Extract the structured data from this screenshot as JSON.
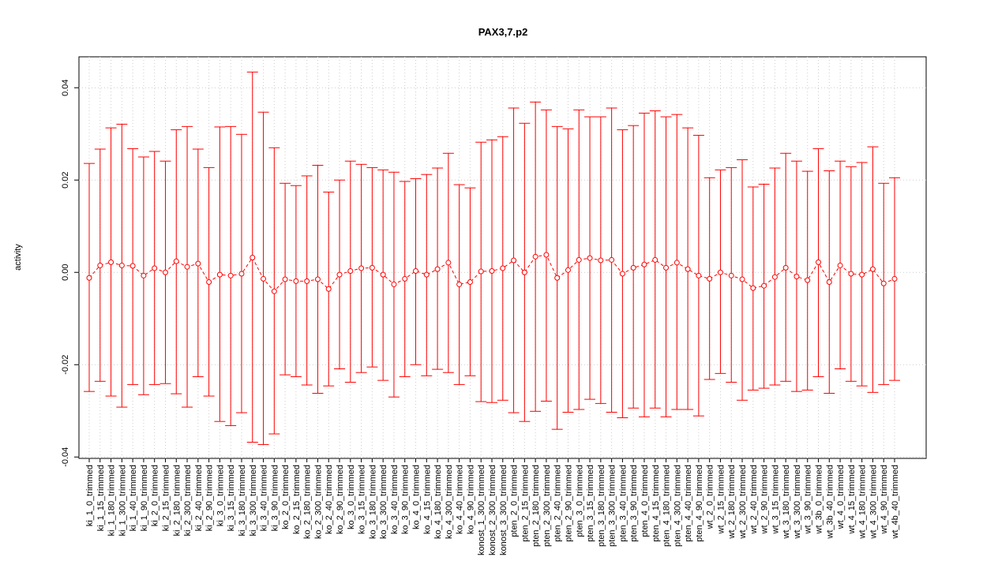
{
  "chart_data": {
    "type": "errorbar",
    "title": "PAX3,7.p2",
    "ylabel": "activity",
    "color": "#ff0000",
    "grid": true,
    "categories": [
      "ki_1_0_trimmed",
      "ki_1_15_trimmed",
      "ki_1_180_trimmed",
      "ki_1_300_trimmed",
      "ki_1_40_trimmed",
      "ki_1_90_trimmed",
      "ki_2_0_trimmed",
      "ki_2_15_trimmed",
      "ki_2_180_trimmed",
      "ki_2_300_trimmed",
      "ki_2_40_trimmed",
      "ki_2_90_trimmed",
      "ki_3_0_trimmed",
      "ki_3_15_trimmed",
      "ki_3_180_trimmed",
      "ki_3_300_trimmed",
      "ki_3_40_trimmed",
      "ki_3_90_trimmed",
      "ko_2_0_trimmed",
      "ko_2_15_trimmed",
      "ko_2_180_trimmed",
      "ko_2_300_trimmed",
      "ko_2_40_trimmed",
      "ko_2_90_trimmed",
      "ko_3_0_trimmed",
      "ko_3_15_trimmed",
      "ko_3_180_trimmed",
      "ko_3_300_trimmed",
      "ko_3_40_trimmed",
      "ko_3_90_trimmed",
      "ko_4_0_trimmed",
      "ko_4_15_trimmed",
      "ko_4_180_trimmed",
      "ko_4_300_trimmed",
      "ko_4_40_trimmed",
      "ko_4_90_trimmed",
      "konost_1_300_trimmed",
      "konost_2_300_trimmed",
      "konost_3_300_trimmed",
      "pten_2_0_trimmed",
      "pten_2_15_trimmed",
      "pten_2_180_trimmed",
      "pten_2_300_trimmed",
      "pten_2_40_trimmed",
      "pten_2_90_trimmed",
      "pten_3_0_trimmed",
      "pten_3_15_trimmed",
      "pten_3_180_trimmed",
      "pten_3_300_trimmed",
      "pten_3_40_trimmed",
      "pten_3_90_trimmed",
      "pten_4_0_trimmed",
      "pten_4_15_trimmed",
      "pten_4_180_trimmed",
      "pten_4_300_trimmed",
      "pten_4_40_trimmed",
      "pten_4_90_trimmed",
      "wt_2_0_trimmed",
      "wt_2_15_trimmed",
      "wt_2_180_trimmed",
      "wt_2_300_trimmed",
      "wt_2_40_trimmed",
      "wt_2_90_trimmed",
      "wt_3_15_trimmed",
      "wt_3_180_trimmed",
      "wt_3_300_trimmed",
      "wt_3_90_trimmed",
      "wt_3b_0_trimmed",
      "wt_3b_40_trimmed",
      "wt_4_0_trimmed",
      "wt_4_15_trimmed",
      "wt_4_180_trimmed",
      "wt_4_300_trimmed",
      "wt_4_90_trimmed",
      "wt_4b_40_trimmed"
    ],
    "values": [
      -0.0012,
      0.0015,
      0.0022,
      0.0015,
      0.0014,
      -0.0007,
      0.0009,
      0,
      0.0024,
      0.0012,
      0.0019,
      -0.0021,
      -0.0005,
      -0.0007,
      -0.0003,
      0.0032,
      -0.0014,
      -0.0041,
      -0.0015,
      -0.0019,
      -0.0019,
      -0.0015,
      -0.0036,
      -0.0005,
      0.0003,
      0.0009,
      0.001,
      -0.0005,
      -0.0026,
      -0.0014,
      0.0003,
      -0.0005,
      0.0007,
      0.0021,
      -0.0026,
      -0.0021,
      0.0002,
      0.0003,
      0.0009,
      0.0026,
      0,
      0.0034,
      0.0038,
      -0.0012,
      0.0005,
      0.0027,
      0.0031,
      0.0026,
      0.0027,
      -0.0003,
      0.001,
      0.0017,
      0.0027,
      0.001,
      0.0021,
      0.0007,
      -0.0007,
      -0.0014,
      0,
      -0.0007,
      -0.0015,
      -0.0034,
      -0.0029,
      -0.001,
      0.001,
      -0.0009,
      -0.0017,
      0.0022,
      -0.0021,
      0.0015,
      -0.0003,
      -0.0005,
      0.0007,
      -0.0024,
      -0.0014
    ],
    "upper": [
      0.0236,
      0.0267,
      0.0313,
      0.0321,
      0.0268,
      0.025,
      0.0262,
      0.0241,
      0.0309,
      0.0316,
      0.0267,
      0.0227,
      0.0315,
      0.0316,
      0.0299,
      0.0434,
      0.0347,
      0.027,
      0.0193,
      0.0188,
      0.0209,
      0.0232,
      0.0174,
      0.02,
      0.0241,
      0.0234,
      0.0227,
      0.0222,
      0.0217,
      0.0197,
      0.0203,
      0.0212,
      0.0226,
      0.0258,
      0.019,
      0.0183,
      0.0282,
      0.0287,
      0.0294,
      0.0356,
      0.0323,
      0.0369,
      0.0352,
      0.0316,
      0.0311,
      0.0352,
      0.0337,
      0.0337,
      0.0356,
      0.0309,
      0.0318,
      0.0345,
      0.035,
      0.0337,
      0.0342,
      0.0313,
      0.0297,
      0.0205,
      0.0222,
      0.0227,
      0.0244,
      0.0185,
      0.0191,
      0.0226,
      0.0258,
      0.0241,
      0.0219,
      0.0268,
      0.022,
      0.0241,
      0.0229,
      0.0238,
      0.0272,
      0.0193,
      0.0205
    ],
    "lower": [
      -0.0258,
      -0.0236,
      -0.0268,
      -0.0292,
      -0.0243,
      -0.0265,
      -0.0243,
      -0.0241,
      -0.0263,
      -0.0292,
      -0.0226,
      -0.0268,
      -0.0323,
      -0.0332,
      -0.0304,
      -0.0368,
      -0.0373,
      -0.035,
      -0.0222,
      -0.0226,
      -0.0244,
      -0.0262,
      -0.0246,
      -0.0209,
      -0.0238,
      -0.0217,
      -0.0205,
      -0.0234,
      -0.027,
      -0.0226,
      -0.02,
      -0.0224,
      -0.021,
      -0.0217,
      -0.0243,
      -0.0224,
      -0.028,
      -0.0282,
      -0.0277,
      -0.0304,
      -0.0323,
      -0.0301,
      -0.0279,
      -0.034,
      -0.0303,
      -0.0297,
      -0.0275,
      -0.0284,
      -0.0303,
      -0.0315,
      -0.0294,
      -0.0313,
      -0.0294,
      -0.0313,
      -0.0297,
      -0.0297,
      -0.0311,
      -0.0232,
      -0.0219,
      -0.0238,
      -0.0277,
      -0.0255,
      -0.0251,
      -0.0244,
      -0.0236,
      -0.0258,
      -0.0255,
      -0.0226,
      -0.0262,
      -0.0209,
      -0.0236,
      -0.0246,
      -0.026,
      -0.0243,
      -0.0234
    ],
    "ylim": [
      -0.0403,
      0.0467
    ],
    "yticks": [
      -0.04,
      -0.02,
      {
        "value": 0,
        "label": "0.00"
      },
      0.02,
      0.04
    ]
  }
}
